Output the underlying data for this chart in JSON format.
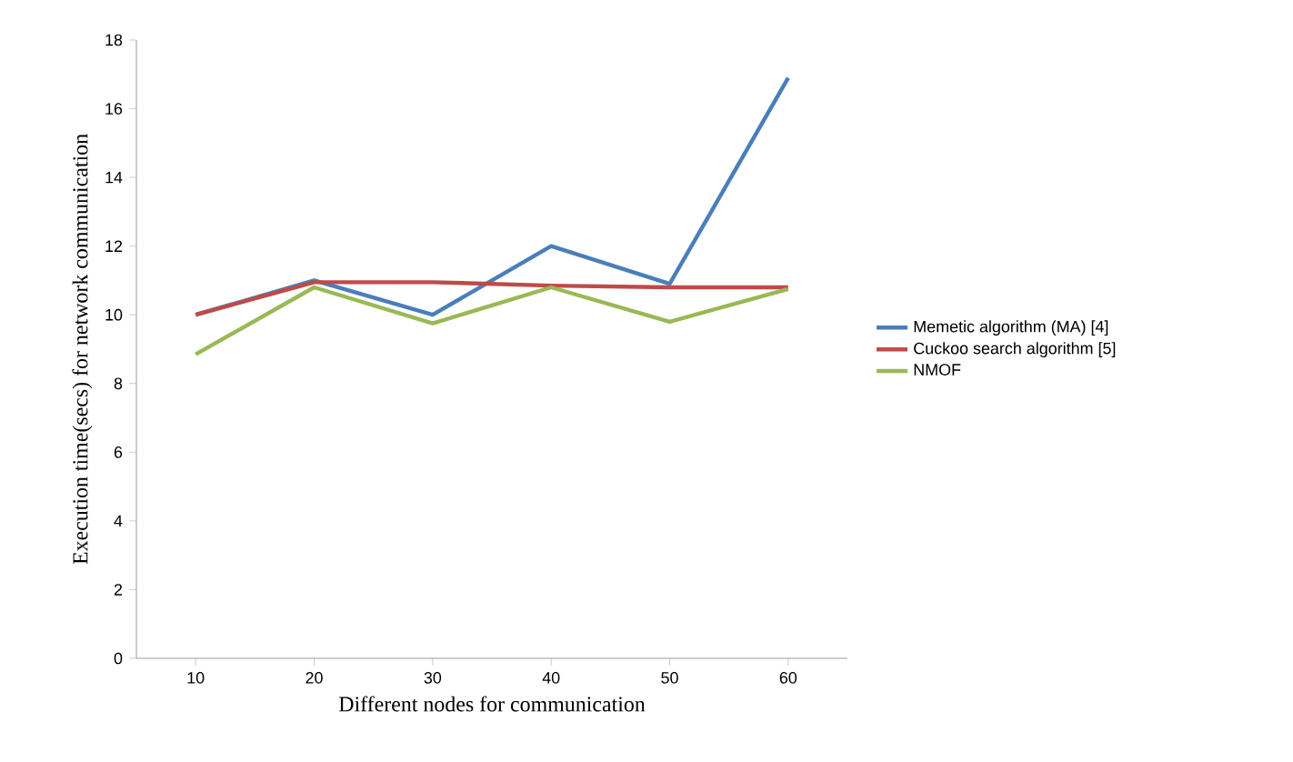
{
  "chart_data": {
    "type": "line",
    "xlabel": "Different nodes for communication",
    "ylabel": "Execution time(secs) for network communication",
    "categories": [
      "10",
      "20",
      "30",
      "40",
      "50",
      "60"
    ],
    "series": [
      {
        "name": "Memetic algorithm  (MA) [4]",
        "color": "#4a7ebb",
        "values": [
          10,
          11,
          10,
          12,
          10.9,
          16.9
        ]
      },
      {
        "name": "Cuckoo search algorithm  [5]",
        "color": "#be4b48",
        "values": [
          10,
          10.95,
          10.95,
          10.85,
          10.8,
          10.8
        ]
      },
      {
        "name": "NMOF",
        "color": "#98b954",
        "values": [
          8.85,
          10.8,
          9.75,
          10.8,
          9.8,
          10.75
        ]
      }
    ],
    "ylim": [
      0,
      18
    ],
    "yticks": [
      0,
      2,
      4,
      6,
      8,
      10,
      12,
      14,
      16,
      18
    ],
    "grid": false,
    "legend": "right",
    "marker": "none",
    "line_style": "solid"
  }
}
